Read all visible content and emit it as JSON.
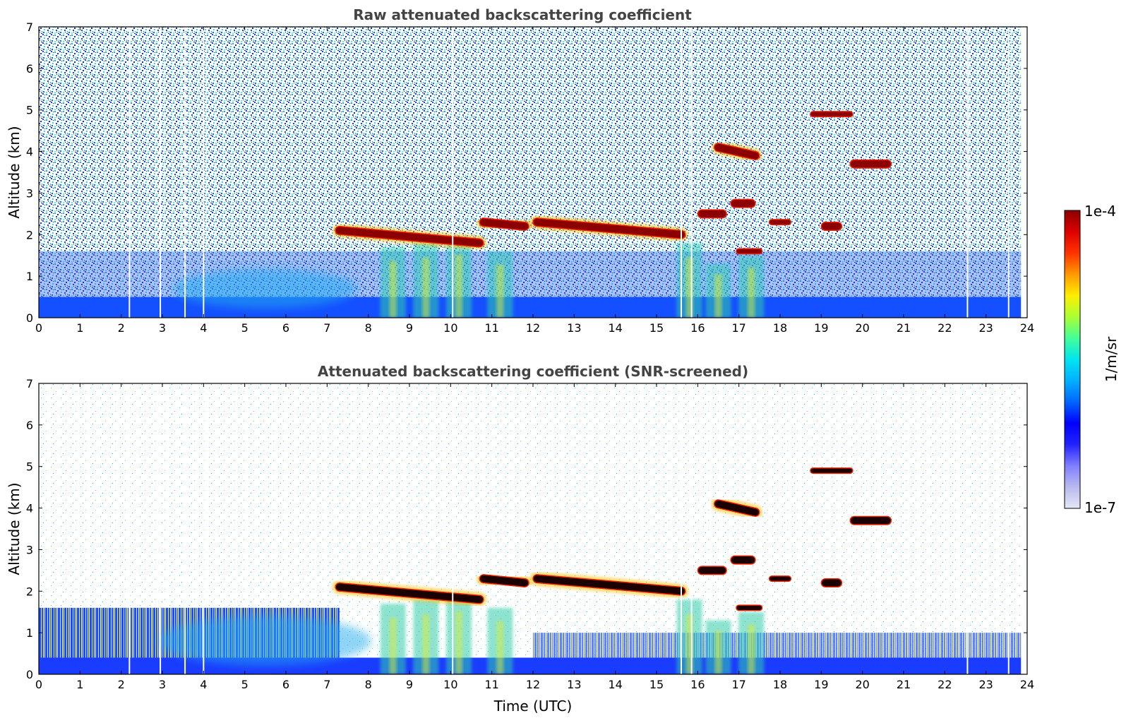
{
  "chart_data": [
    {
      "type": "heatmap",
      "title": "Raw attenuated backscattering coefficient",
      "xlabel": "",
      "ylabel": "Altitude (km)",
      "xlim": [
        0,
        24
      ],
      "ylim": [
        0,
        7
      ],
      "xticks": [
        "0",
        "1",
        "2",
        "3",
        "4",
        "5",
        "6",
        "7",
        "8",
        "9",
        "10",
        "11",
        "12",
        "13",
        "14",
        "15",
        "16",
        "17",
        "18",
        "19",
        "20",
        "21",
        "22",
        "23",
        "24"
      ],
      "yticks": [
        "0",
        "1",
        "2",
        "3",
        "4",
        "5",
        "6",
        "7"
      ],
      "screened": false,
      "features": [
        {
          "kind": "cloud_layer",
          "t_start": 7.3,
          "t_end": 10.7,
          "alt_start": 2.1,
          "alt_end": 1.8,
          "intensity": "high"
        },
        {
          "kind": "cloud_layer",
          "t_start": 10.8,
          "t_end": 11.8,
          "alt_start": 2.3,
          "alt_end": 2.2,
          "intensity": "high"
        },
        {
          "kind": "cloud_layer",
          "t_start": 12.1,
          "t_end": 15.6,
          "alt_start": 2.3,
          "alt_end": 2.0,
          "intensity": "high"
        },
        {
          "kind": "cloud_layer",
          "t_start": 16.1,
          "t_end": 16.6,
          "alt_start": 2.5,
          "alt_end": 2.5,
          "intensity": "high"
        },
        {
          "kind": "cloud_layer",
          "t_start": 16.5,
          "t_end": 17.4,
          "alt_start": 4.1,
          "alt_end": 3.9,
          "intensity": "high"
        },
        {
          "kind": "cloud_layer",
          "t_start": 16.9,
          "t_end": 17.3,
          "alt_start": 2.75,
          "alt_end": 2.75,
          "intensity": "high"
        },
        {
          "kind": "cloud_layer",
          "t_start": 17.0,
          "t_end": 17.5,
          "alt_start": 1.6,
          "alt_end": 1.6,
          "intensity": "medium"
        },
        {
          "kind": "cloud_layer",
          "t_start": 17.8,
          "t_end": 18.2,
          "alt_start": 2.3,
          "alt_end": 2.3,
          "intensity": "medium"
        },
        {
          "kind": "cloud_layer",
          "t_start": 19.1,
          "t_end": 19.4,
          "alt_start": 2.2,
          "alt_end": 2.2,
          "intensity": "high"
        },
        {
          "kind": "cloud_layer",
          "t_start": 19.8,
          "t_end": 20.6,
          "alt_start": 3.7,
          "alt_end": 3.7,
          "intensity": "high"
        },
        {
          "kind": "cloud_layer",
          "t_start": 18.8,
          "t_end": 19.7,
          "alt_start": 4.9,
          "alt_end": 4.9,
          "intensity": "medium"
        }
      ]
    },
    {
      "type": "heatmap",
      "title": "Attenuated backscattering coefficient (SNR-screened)",
      "xlabel": "Time (UTC)",
      "ylabel": "Altitude (km)",
      "xlim": [
        0,
        24
      ],
      "ylim": [
        0,
        7
      ],
      "xticks": [
        "0",
        "1",
        "2",
        "3",
        "4",
        "5",
        "6",
        "7",
        "8",
        "9",
        "10",
        "11",
        "12",
        "13",
        "14",
        "15",
        "16",
        "17",
        "18",
        "19",
        "20",
        "21",
        "22",
        "23",
        "24"
      ],
      "yticks": [
        "0",
        "1",
        "2",
        "3",
        "4",
        "5",
        "6",
        "7"
      ],
      "screened": true
    }
  ],
  "colorbar": {
    "label": "1/m/sr",
    "max_label": "1e-4",
    "min_label": "1e-7",
    "scale": "log",
    "colormap": [
      "#e6e6f7",
      "#b9b9ee",
      "#7f7fff",
      "#2222ff",
      "#0000ff",
      "#0066ff",
      "#00b0ff",
      "#00e5ee",
      "#44ff99",
      "#aaff33",
      "#ffee00",
      "#ff9900",
      "#ff3300",
      "#dd0000",
      "#8b0000"
    ]
  }
}
